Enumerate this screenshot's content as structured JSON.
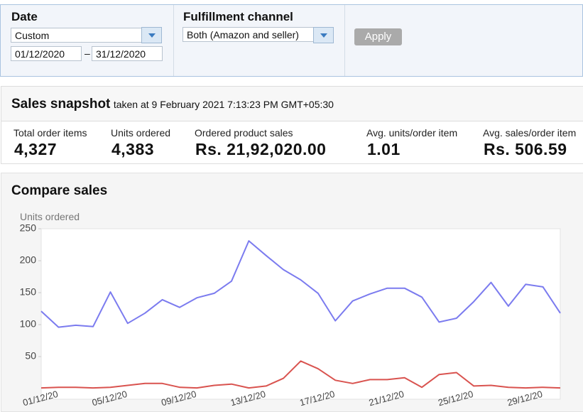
{
  "filters": {
    "date_label": "Date",
    "date_preset": "Custom",
    "date_from": "01/12/2020",
    "date_sep": "–",
    "date_to": "31/12/2020",
    "channel_label": "Fulfillment channel",
    "channel_value": "Both (Amazon and seller)",
    "apply": "Apply"
  },
  "snapshot": {
    "title": "Sales snapshot",
    "taken": "taken at 9 February 2021 7:13:23 PM GMT+05:30",
    "metrics": [
      {
        "label": "Total order items",
        "value": "4,327"
      },
      {
        "label": "Units ordered",
        "value": "4,383"
      },
      {
        "label": "Ordered product sales",
        "value": "Rs. 21,92,020.00"
      },
      {
        "label": "Avg. units/order item",
        "value": "1.01"
      },
      {
        "label": "Avg. sales/order item",
        "value": "Rs. 506.59"
      }
    ]
  },
  "compare": {
    "title": "Compare sales"
  },
  "chart_data": {
    "type": "line",
    "y_label": "Units ordered",
    "categories": [
      "01/12/20",
      null,
      null,
      null,
      "05/12/20",
      null,
      null,
      null,
      "09/12/20",
      null,
      null,
      null,
      "13/12/20",
      null,
      null,
      null,
      "17/12/20",
      null,
      null,
      null,
      "21/12/20",
      null,
      null,
      null,
      "25/12/20",
      null,
      null,
      null,
      "29/12/20",
      null,
      null
    ],
    "series": [
      {
        "color": "#7b7bef",
        "values": [
          121,
          96,
          99,
          97,
          151,
          102,
          118,
          139,
          127,
          142,
          149,
          168,
          231,
          208,
          186,
          170,
          149,
          106,
          137,
          148,
          157,
          157,
          143,
          104,
          110,
          136,
          166,
          129,
          163,
          159,
          118
        ]
      },
      {
        "color": "#d9534f",
        "values": [
          1,
          2,
          2,
          1,
          2,
          5,
          8,
          8,
          2,
          1,
          5,
          7,
          1,
          4,
          16,
          43,
          31,
          13,
          8,
          14,
          14,
          17,
          2,
          22,
          25,
          4,
          5,
          2,
          1,
          2,
          1
        ]
      }
    ],
    "ylim": [
      0,
      250
    ],
    "yticks": [
      50,
      100,
      150,
      200,
      250
    ]
  }
}
